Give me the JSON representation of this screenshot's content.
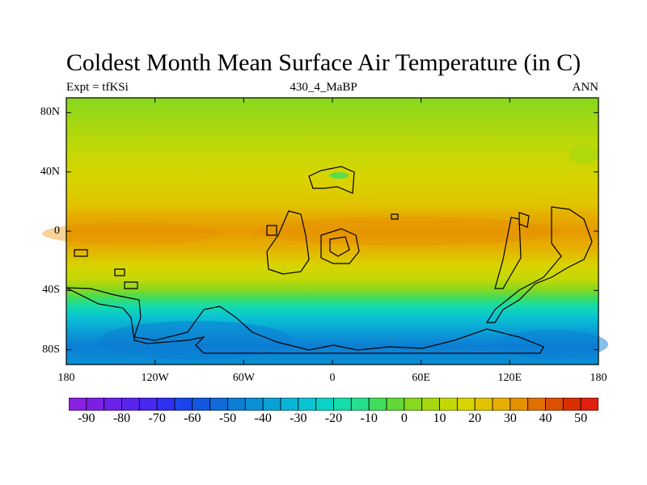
{
  "title": "Coldest Month Mean Surface Air Temperature (in C)",
  "subtitle_left": "Expt = tfKSi",
  "subtitle_center": "430_4_MaBP",
  "subtitle_right": "ANN",
  "map": {
    "projection": "cylindrical equidistant",
    "lon_range": [
      -180,
      180
    ],
    "lat_range": [
      -90,
      90
    ],
    "x_ticks": [
      {
        "lon": -180,
        "label": "180"
      },
      {
        "lon": -120,
        "label": "120W"
      },
      {
        "lon": -60,
        "label": "60W"
      },
      {
        "lon": 0,
        "label": "0"
      },
      {
        "lon": 60,
        "label": "60E"
      },
      {
        "lon": 120,
        "label": "120E"
      },
      {
        "lon": 180,
        "label": "180"
      }
    ],
    "y_ticks": [
      {
        "lat": 80,
        "label": "80N"
      },
      {
        "lat": 40,
        "label": "40N"
      },
      {
        "lat": 0,
        "label": "0"
      },
      {
        "lat": -40,
        "label": "40S"
      },
      {
        "lat": -80,
        "label": "80S"
      }
    ],
    "field_description": "Warmest (25-35 C) band near the equator, cooling poleward; southern high latitudes reach about -50 C, northern high latitudes about 0 C",
    "outline_color": "#000000"
  },
  "colorbar": {
    "levels": [
      -95,
      -90,
      -85,
      -80,
      -75,
      -70,
      -65,
      -60,
      -55,
      -50,
      -45,
      -40,
      -35,
      -30,
      -25,
      -20,
      -15,
      -10,
      -5,
      0,
      5,
      10,
      15,
      20,
      25,
      30,
      35,
      40,
      45,
      50,
      55
    ],
    "colors": [
      "#8a20e0",
      "#7a20e4",
      "#6a22e8",
      "#5a24ec",
      "#4828ee",
      "#3030f0",
      "#1c44ea",
      "#1458e0",
      "#106ad8",
      "#0c7ed4",
      "#0a90d4",
      "#0aa2d6",
      "#0ab4d6",
      "#0ac4d2",
      "#0ad2c4",
      "#16dcaa",
      "#26e08c",
      "#40dc5e",
      "#62d838",
      "#86d820",
      "#a6d810",
      "#c4d806",
      "#d8d400",
      "#e0c400",
      "#e6ae00",
      "#e69000",
      "#e07000",
      "#dc5000",
      "#d83000",
      "#e02010"
    ],
    "labels": [
      {
        "value": -90,
        "text": "-90"
      },
      {
        "value": -80,
        "text": "-80"
      },
      {
        "value": -70,
        "text": "-70"
      },
      {
        "value": -60,
        "text": "-60"
      },
      {
        "value": -50,
        "text": "-50"
      },
      {
        "value": -40,
        "text": "-40"
      },
      {
        "value": -30,
        "text": "-30"
      },
      {
        "value": -20,
        "text": "-20"
      },
      {
        "value": -10,
        "text": "-10"
      },
      {
        "value": 0,
        "text": "0"
      },
      {
        "value": 10,
        "text": "10"
      },
      {
        "value": 20,
        "text": "20"
      },
      {
        "value": 30,
        "text": "30"
      },
      {
        "value": 40,
        "text": "40"
      },
      {
        "value": 50,
        "text": "50"
      }
    ]
  }
}
